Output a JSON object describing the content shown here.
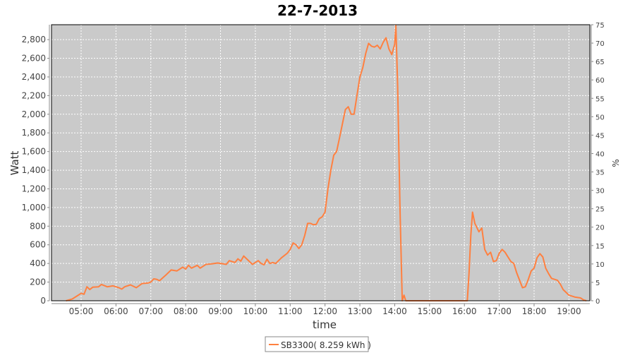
{
  "chart_data": {
    "type": "line",
    "title": "22-7-2013",
    "xlabel": "time",
    "ylabel": "Watt",
    "ylabel_right": "%",
    "xlim": [
      "04:09",
      "19:36"
    ],
    "ylim": [
      0,
      2960
    ],
    "ylim_right": [
      0,
      75
    ],
    "x_ticks": [
      "05:00",
      "06:00",
      "07:00",
      "08:00",
      "09:00",
      "10:00",
      "11:00",
      "12:00",
      "13:00",
      "14:00",
      "15:00",
      "16:00",
      "17:00",
      "18:00",
      "19:00"
    ],
    "y_ticks": [
      "0",
      "200",
      "400",
      "600",
      "800",
      "1,000",
      "1,200",
      "1,400",
      "1,600",
      "1,800",
      "2,000",
      "2,200",
      "2,400",
      "2,600",
      "2,800"
    ],
    "y_ticks_right": [
      "0",
      "5",
      "10",
      "15",
      "20",
      "25",
      "30",
      "35",
      "40",
      "45",
      "50",
      "55",
      "60",
      "65",
      "70",
      "75"
    ],
    "grid": true,
    "legend_position": "bottom",
    "background_color": "#cacaca",
    "series": [
      {
        "name": "SB3300( 8.259 kWh )",
        "color": "#ff8040",
        "points": [
          [
            "04:34",
            0
          ],
          [
            "04:45",
            20
          ],
          [
            "04:55",
            60
          ],
          [
            "05:00",
            80
          ],
          [
            "05:05",
            70
          ],
          [
            "05:10",
            150
          ],
          [
            "05:15",
            120
          ],
          [
            "05:20",
            145
          ],
          [
            "05:30",
            150
          ],
          [
            "05:35",
            175
          ],
          [
            "05:45",
            150
          ],
          [
            "05:55",
            160
          ],
          [
            "06:05",
            140
          ],
          [
            "06:10",
            125
          ],
          [
            "06:15",
            150
          ],
          [
            "06:25",
            170
          ],
          [
            "06:35",
            140
          ],
          [
            "06:45",
            185
          ],
          [
            "06:55",
            190
          ],
          [
            "07:00",
            200
          ],
          [
            "07:05",
            235
          ],
          [
            "07:10",
            230
          ],
          [
            "07:15",
            215
          ],
          [
            "07:25",
            270
          ],
          [
            "07:35",
            330
          ],
          [
            "07:45",
            320
          ],
          [
            "07:55",
            360
          ],
          [
            "08:00",
            340
          ],
          [
            "08:05",
            380
          ],
          [
            "08:10",
            350
          ],
          [
            "08:20",
            380
          ],
          [
            "08:25",
            350
          ],
          [
            "08:35",
            390
          ],
          [
            "08:45",
            395
          ],
          [
            "08:55",
            405
          ],
          [
            "09:05",
            395
          ],
          [
            "09:10",
            390
          ],
          [
            "09:15",
            430
          ],
          [
            "09:20",
            420
          ],
          [
            "09:25",
            410
          ],
          [
            "09:30",
            450
          ],
          [
            "09:35",
            425
          ],
          [
            "09:40",
            480
          ],
          [
            "09:45",
            450
          ],
          [
            "09:55",
            390
          ],
          [
            "10:05",
            430
          ],
          [
            "10:10",
            400
          ],
          [
            "10:15",
            385
          ],
          [
            "10:20",
            445
          ],
          [
            "10:25",
            400
          ],
          [
            "10:30",
            410
          ],
          [
            "10:35",
            400
          ],
          [
            "10:45",
            460
          ],
          [
            "10:55",
            510
          ],
          [
            "11:00",
            550
          ],
          [
            "11:05",
            620
          ],
          [
            "11:10",
            600
          ],
          [
            "11:15",
            560
          ],
          [
            "11:20",
            600
          ],
          [
            "11:25",
            700
          ],
          [
            "11:30",
            830
          ],
          [
            "11:35",
            830
          ],
          [
            "11:40",
            815
          ],
          [
            "11:45",
            820
          ],
          [
            "11:50",
            880
          ],
          [
            "11:55",
            900
          ],
          [
            "12:00",
            950
          ],
          [
            "12:05",
            1200
          ],
          [
            "12:10",
            1400
          ],
          [
            "12:15",
            1560
          ],
          [
            "12:20",
            1600
          ],
          [
            "12:25",
            1750
          ],
          [
            "12:30",
            1900
          ],
          [
            "12:35",
            2050
          ],
          [
            "12:40",
            2080
          ],
          [
            "12:45",
            2000
          ],
          [
            "12:50",
            2000
          ],
          [
            "12:55",
            2200
          ],
          [
            "13:00",
            2400
          ],
          [
            "13:05",
            2500
          ],
          [
            "13:10",
            2650
          ],
          [
            "13:15",
            2760
          ],
          [
            "13:20",
            2730
          ],
          [
            "13:25",
            2720
          ],
          [
            "13:30",
            2740
          ],
          [
            "13:35",
            2700
          ],
          [
            "13:40",
            2770
          ],
          [
            "13:45",
            2820
          ],
          [
            "13:50",
            2700
          ],
          [
            "13:55",
            2640
          ],
          [
            "14:00",
            2750
          ],
          [
            "14:02",
            2950
          ],
          [
            "14:05",
            2300
          ],
          [
            "14:09",
            1000
          ],
          [
            "14:13",
            0
          ],
          [
            "14:16",
            60
          ],
          [
            "14:19",
            0
          ],
          [
            "16:05",
            0
          ],
          [
            "16:08",
            300
          ],
          [
            "16:11",
            700
          ],
          [
            "16:14",
            950
          ],
          [
            "16:18",
            830
          ],
          [
            "16:25",
            740
          ],
          [
            "16:30",
            780
          ],
          [
            "16:35",
            550
          ],
          [
            "16:40",
            490
          ],
          [
            "16:45",
            520
          ],
          [
            "16:50",
            420
          ],
          [
            "16:55",
            430
          ],
          [
            "17:00",
            510
          ],
          [
            "17:05",
            550
          ],
          [
            "17:10",
            520
          ],
          [
            "17:15",
            470
          ],
          [
            "17:20",
            420
          ],
          [
            "17:25",
            400
          ],
          [
            "17:30",
            300
          ],
          [
            "17:35",
            220
          ],
          [
            "17:40",
            140
          ],
          [
            "17:45",
            150
          ],
          [
            "17:50",
            230
          ],
          [
            "17:55",
            320
          ],
          [
            "18:00",
            350
          ],
          [
            "18:05",
            460
          ],
          [
            "18:10",
            505
          ],
          [
            "18:15",
            470
          ],
          [
            "18:20",
            350
          ],
          [
            "18:25",
            290
          ],
          [
            "18:30",
            240
          ],
          [
            "18:40",
            220
          ],
          [
            "18:45",
            180
          ],
          [
            "18:50",
            120
          ],
          [
            "18:55",
            90
          ],
          [
            "19:00",
            60
          ],
          [
            "19:10",
            40
          ],
          [
            "19:20",
            30
          ],
          [
            "19:25",
            10
          ],
          [
            "19:30",
            0
          ]
        ]
      }
    ]
  }
}
